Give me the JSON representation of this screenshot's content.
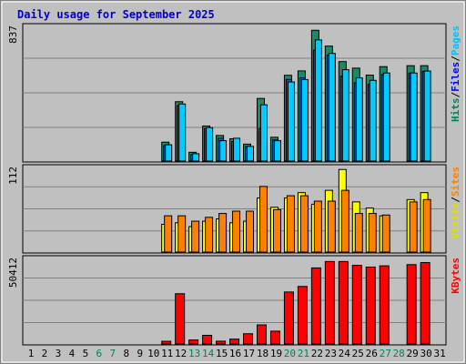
{
  "chart_data": [
    {
      "type": "bar",
      "title": "Daily usage for September 2025",
      "panel": "hits-files-pages",
      "ymax_label": "837",
      "ylim": [
        0,
        837
      ],
      "grid": true,
      "categories": [
        "1",
        "2",
        "3",
        "4",
        "5",
        "6",
        "7",
        "8",
        "9",
        "10",
        "11",
        "12",
        "13",
        "14",
        "15",
        "16",
        "17",
        "18",
        "19",
        "20",
        "21",
        "22",
        "23",
        "24",
        "25",
        "26",
        "27",
        "28",
        "29",
        "30",
        "31"
      ],
      "weekend_days": [
        "6",
        "7",
        "13",
        "14",
        "20",
        "21",
        "27",
        "28"
      ],
      "legend": [
        {
          "label": "Hits",
          "color": "#00805c"
        },
        {
          "label": "/",
          "color": "#000000"
        },
        {
          "label": "Files",
          "color": "#0000ff"
        },
        {
          "label": "/",
          "color": "#000000"
        },
        {
          "label": "Pages",
          "color": "#00c0ff"
        }
      ],
      "series": [
        {
          "name": "Hits",
          "color": "#1a8a66",
          "values": [
            0,
            0,
            0,
            0,
            0,
            0,
            0,
            0,
            0,
            0,
            116,
            364,
            54,
            215,
            157,
            137,
            104,
            384,
            146,
            526,
            553,
            802,
            705,
            610,
            570,
            527,
            579,
            0,
            585,
            585,
            0
          ]
        },
        {
          "name": "Files",
          "color": "#1a50d0",
          "values": [
            0,
            0,
            0,
            0,
            0,
            0,
            0,
            0,
            0,
            0,
            95,
            340,
            40,
            200,
            140,
            120,
            90,
            200,
            130,
            500,
            510,
            680,
            650,
            520,
            480,
            470,
            530,
            0,
            540,
            550,
            0
          ]
        },
        {
          "name": "Pages",
          "color": "#00ccff",
          "values": [
            0,
            0,
            0,
            0,
            0,
            0,
            0,
            0,
            0,
            0,
            100,
            350,
            45,
            205,
            125,
            140,
            90,
            345,
            125,
            485,
            500,
            743,
            660,
            560,
            510,
            495,
            540,
            0,
            540,
            552,
            0
          ]
        }
      ]
    },
    {
      "type": "bar",
      "panel": "visits-sites",
      "ymax_label": "112",
      "ylim": [
        0,
        112
      ],
      "grid": true,
      "legend": [
        {
          "label": "Visits",
          "color": "#e0e000"
        },
        {
          "label": "/",
          "color": "#000000"
        },
        {
          "label": "Sites",
          "color": "#ff8000"
        }
      ],
      "series": [
        {
          "name": "Visits",
          "color": "#ffff00",
          "values": [
            0,
            0,
            0,
            0,
            0,
            0,
            0,
            0,
            0,
            0,
            36,
            38,
            33,
            40,
            43,
            38,
            40,
            70,
            58,
            70,
            77,
            62,
            80,
            107,
            65,
            57,
            47,
            0,
            68,
            77,
            0
          ]
        },
        {
          "name": "Sites",
          "color": "#ff8000",
          "values": [
            0,
            0,
            0,
            0,
            0,
            0,
            0,
            0,
            0,
            0,
            47,
            47,
            40,
            45,
            50,
            53,
            53,
            85,
            55,
            73,
            73,
            66,
            66,
            80,
            50,
            50,
            48,
            0,
            65,
            68,
            0
          ]
        }
      ]
    },
    {
      "type": "bar",
      "panel": "kbytes",
      "ymax_label": "50412",
      "ylim": [
        0,
        50412
      ],
      "grid": true,
      "legend": [
        {
          "label": "KBytes",
          "color": "#ff0000"
        }
      ],
      "series": [
        {
          "name": "KBytes",
          "color": "#ff0000",
          "values": [
            0,
            0,
            0,
            0,
            0,
            0,
            0,
            0,
            0,
            0,
            1550,
            29000,
            2300,
            5000,
            1600,
            2800,
            5900,
            11000,
            7400,
            30000,
            33200,
            43900,
            47600,
            47600,
            45400,
            44400,
            45100,
            0,
            45800,
            47000,
            0
          ]
        }
      ]
    }
  ]
}
